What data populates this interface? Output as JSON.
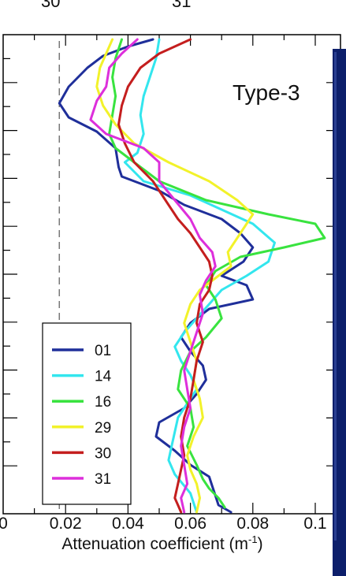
{
  "chart_data": {
    "type": "line",
    "annotation": "Type-3",
    "xlabel": "Attenuation coefficient (m",
    "xlabel_sup": "-1",
    "xlabel_end": ")",
    "xlim": [
      0,
      0.11
    ],
    "x_ticks": [
      "0",
      "0.02",
      "0.04",
      "0.06",
      "0.08",
      "0.1"
    ],
    "ylim": [
      0,
      1
    ],
    "y_reversed": true,
    "reference_line_x": 0.018,
    "top_partial_labels": [
      "30",
      "31"
    ],
    "legend_position": "bottom-left",
    "series": [
      {
        "name": "01",
        "color": "#1f2f9a",
        "x": [
          0.048,
          0.04,
          0.032,
          0.027,
          0.021,
          0.018,
          0.021,
          0.03,
          0.036,
          0.037,
          0.038,
          0.05,
          0.058,
          0.07,
          0.076,
          0.08,
          0.077,
          0.07,
          0.078,
          0.08,
          0.066,
          0.06,
          0.057,
          0.06,
          0.064,
          0.065,
          0.062,
          0.058,
          0.05,
          0.049,
          0.055,
          0.06,
          0.066,
          0.067,
          0.068,
          0.069,
          0.073
        ],
        "y": [
          0.0,
          0.015,
          0.035,
          0.06,
          0.1,
          0.135,
          0.165,
          0.195,
          0.23,
          0.27,
          0.29,
          0.32,
          0.35,
          0.38,
          0.41,
          0.44,
          0.47,
          0.5,
          0.52,
          0.55,
          0.57,
          0.6,
          0.63,
          0.66,
          0.69,
          0.72,
          0.75,
          0.78,
          0.81,
          0.84,
          0.87,
          0.9,
          0.925,
          0.945,
          0.965,
          0.985,
          1.0
        ]
      },
      {
        "name": "14",
        "color": "#33e6ee",
        "x": [
          0.05,
          0.049,
          0.047,
          0.045,
          0.044,
          0.045,
          0.043,
          0.039,
          0.045,
          0.06,
          0.07,
          0.08,
          0.087,
          0.085,
          0.078,
          0.07,
          0.066,
          0.062,
          0.058,
          0.055,
          0.057,
          0.06,
          0.062,
          0.059,
          0.056,
          0.055,
          0.054,
          0.053,
          0.055,
          0.06,
          0.062
        ],
        "y": [
          0.0,
          0.04,
          0.08,
          0.12,
          0.16,
          0.2,
          0.24,
          0.26,
          0.3,
          0.33,
          0.36,
          0.39,
          0.43,
          0.47,
          0.5,
          0.53,
          0.56,
          0.59,
          0.62,
          0.65,
          0.68,
          0.71,
          0.74,
          0.77,
          0.8,
          0.83,
          0.86,
          0.89,
          0.92,
          0.96,
          1.0
        ]
      },
      {
        "name": "16",
        "color": "#39e33f",
        "x": [
          0.038,
          0.036,
          0.035,
          0.036,
          0.035,
          0.034,
          0.036,
          0.044,
          0.05,
          0.065,
          0.085,
          0.1,
          0.103,
          0.09,
          0.076,
          0.068,
          0.065,
          0.068,
          0.07,
          0.065,
          0.06,
          0.057,
          0.056,
          0.06,
          0.061,
          0.059,
          0.062,
          0.064,
          0.066,
          0.069,
          0.071
        ],
        "y": [
          0.0,
          0.04,
          0.08,
          0.12,
          0.16,
          0.2,
          0.23,
          0.27,
          0.3,
          0.34,
          0.37,
          0.39,
          0.42,
          0.44,
          0.46,
          0.49,
          0.52,
          0.55,
          0.59,
          0.63,
          0.66,
          0.7,
          0.74,
          0.78,
          0.82,
          0.86,
          0.9,
          0.93,
          0.95,
          0.97,
          0.99
        ]
      },
      {
        "name": "29",
        "color": "#f2f22a",
        "x": [
          0.035,
          0.033,
          0.031,
          0.03,
          0.032,
          0.036,
          0.042,
          0.053,
          0.066,
          0.075,
          0.08,
          0.076,
          0.072,
          0.073,
          0.069,
          0.063,
          0.06,
          0.058,
          0.06,
          0.062,
          0.061,
          0.063,
          0.064,
          0.061,
          0.059,
          0.06,
          0.062,
          0.063,
          0.062
        ],
        "y": [
          0.0,
          0.03,
          0.06,
          0.1,
          0.14,
          0.18,
          0.22,
          0.26,
          0.3,
          0.34,
          0.37,
          0.41,
          0.45,
          0.48,
          0.5,
          0.53,
          0.56,
          0.6,
          0.64,
          0.68,
          0.72,
          0.76,
          0.8,
          0.84,
          0.88,
          0.91,
          0.94,
          0.97,
          1.0
        ]
      },
      {
        "name": "30",
        "color": "#c41e1e",
        "x": [
          0.06,
          0.05,
          0.044,
          0.04,
          0.038,
          0.037,
          0.039,
          0.042,
          0.048,
          0.052,
          0.056,
          0.06,
          0.063,
          0.066,
          0.067,
          0.066,
          0.063,
          0.062,
          0.064,
          0.062,
          0.061,
          0.06,
          0.058,
          0.057,
          0.058,
          0.057,
          0.056,
          0.055,
          0.056,
          0.057
        ],
        "y": [
          0.0,
          0.03,
          0.06,
          0.1,
          0.14,
          0.18,
          0.22,
          0.26,
          0.3,
          0.34,
          0.38,
          0.41,
          0.44,
          0.47,
          0.5,
          0.53,
          0.56,
          0.6,
          0.64,
          0.68,
          0.72,
          0.76,
          0.8,
          0.84,
          0.88,
          0.91,
          0.94,
          0.97,
          0.985,
          1.0
        ]
      },
      {
        "name": "31",
        "color": "#dd2fdb",
        "x": [
          0.043,
          0.038,
          0.034,
          0.033,
          0.03,
          0.028,
          0.033,
          0.045,
          0.05,
          0.05,
          0.055,
          0.06,
          0.063,
          0.067,
          0.068,
          0.065,
          0.063,
          0.064,
          0.062,
          0.06,
          0.058,
          0.059,
          0.06,
          0.058,
          0.057,
          0.058,
          0.059,
          0.057,
          0.058
        ],
        "y": [
          0.0,
          0.03,
          0.06,
          0.1,
          0.13,
          0.17,
          0.2,
          0.23,
          0.26,
          0.3,
          0.34,
          0.38,
          0.42,
          0.45,
          0.48,
          0.51,
          0.54,
          0.58,
          0.62,
          0.66,
          0.7,
          0.74,
          0.78,
          0.82,
          0.86,
          0.9,
          0.94,
          0.97,
          1.0
        ]
      }
    ]
  }
}
